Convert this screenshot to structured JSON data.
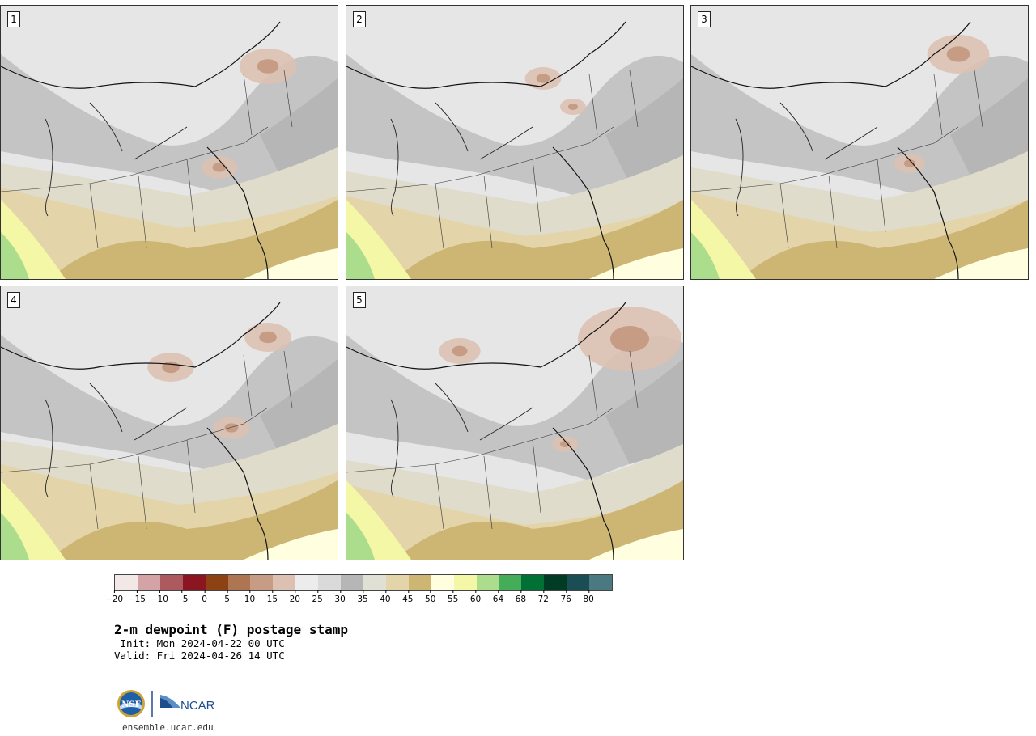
{
  "panels": [
    {
      "label": "1"
    },
    {
      "label": "2"
    },
    {
      "label": "3"
    },
    {
      "label": "4"
    },
    {
      "label": "5"
    }
  ],
  "colorbar": {
    "colors": [
      "#f2e8e8",
      "#d4a3a6",
      "#ad5a5e",
      "#8b1520",
      "#8c4213",
      "#ad7552",
      "#c79c85",
      "#dcc1b3",
      "#ececec",
      "#dadada",
      "#b6b6b6",
      "#e0e0d4",
      "#e3d4aa",
      "#cdb674",
      "#ffffe0",
      "#f4f7a6",
      "#abdd8c",
      "#45ad5a",
      "#007035",
      "#003b24",
      "#1b4d55",
      "#4a7981"
    ],
    "tick_labels": [
      "−20",
      "−15",
      "−10",
      "−5",
      "0",
      "5",
      "10",
      "15",
      "20",
      "25",
      "30",
      "35",
      "40",
      "45",
      "50",
      "55",
      "60",
      "64",
      "68",
      "72",
      "76",
      "80"
    ]
  },
  "title": "2-m dewpoint (F) postage stamp",
  "init_line": " Init: Mon 2024-04-22 00 UTC",
  "valid_line": "Valid: Fri 2024-04-26 14 UTC",
  "logos": {
    "nsf": "NSF",
    "ncar": "NCAR"
  },
  "url": "ensemble.ucar.edu"
}
